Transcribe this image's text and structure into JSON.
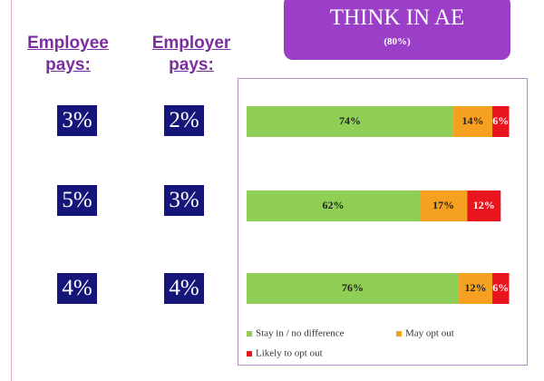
{
  "employee": {
    "heading": "Employee pays:",
    "values": [
      "3%",
      "5%",
      "4%"
    ]
  },
  "employer": {
    "heading": "Employer pays:",
    "values": [
      "2%",
      "3%",
      "4%"
    ]
  },
  "chart_data": {
    "type": "bar",
    "orientation": "horizontal",
    "stacked": true,
    "title": "THINK IN AE",
    "subtitle": "(80%)",
    "categories": [
      null,
      null,
      null
    ],
    "xlim": [
      0,
      100
    ],
    "series": [
      {
        "name": "Stay in / no difference",
        "color": "#8fcf55",
        "values": [
          74,
          62,
          76
        ],
        "value_labels": [
          "74%",
          "62%",
          "76%"
        ]
      },
      {
        "name": "May opt out",
        "color": "#f5a020",
        "values": [
          14,
          17,
          12
        ],
        "value_labels": [
          "14%",
          "17%",
          "12%"
        ]
      },
      {
        "name": "Likely to opt out",
        "color": "#e8141e",
        "values": [
          6,
          12,
          6
        ],
        "value_labels": [
          "6%",
          "12%",
          "6%"
        ]
      }
    ]
  }
}
